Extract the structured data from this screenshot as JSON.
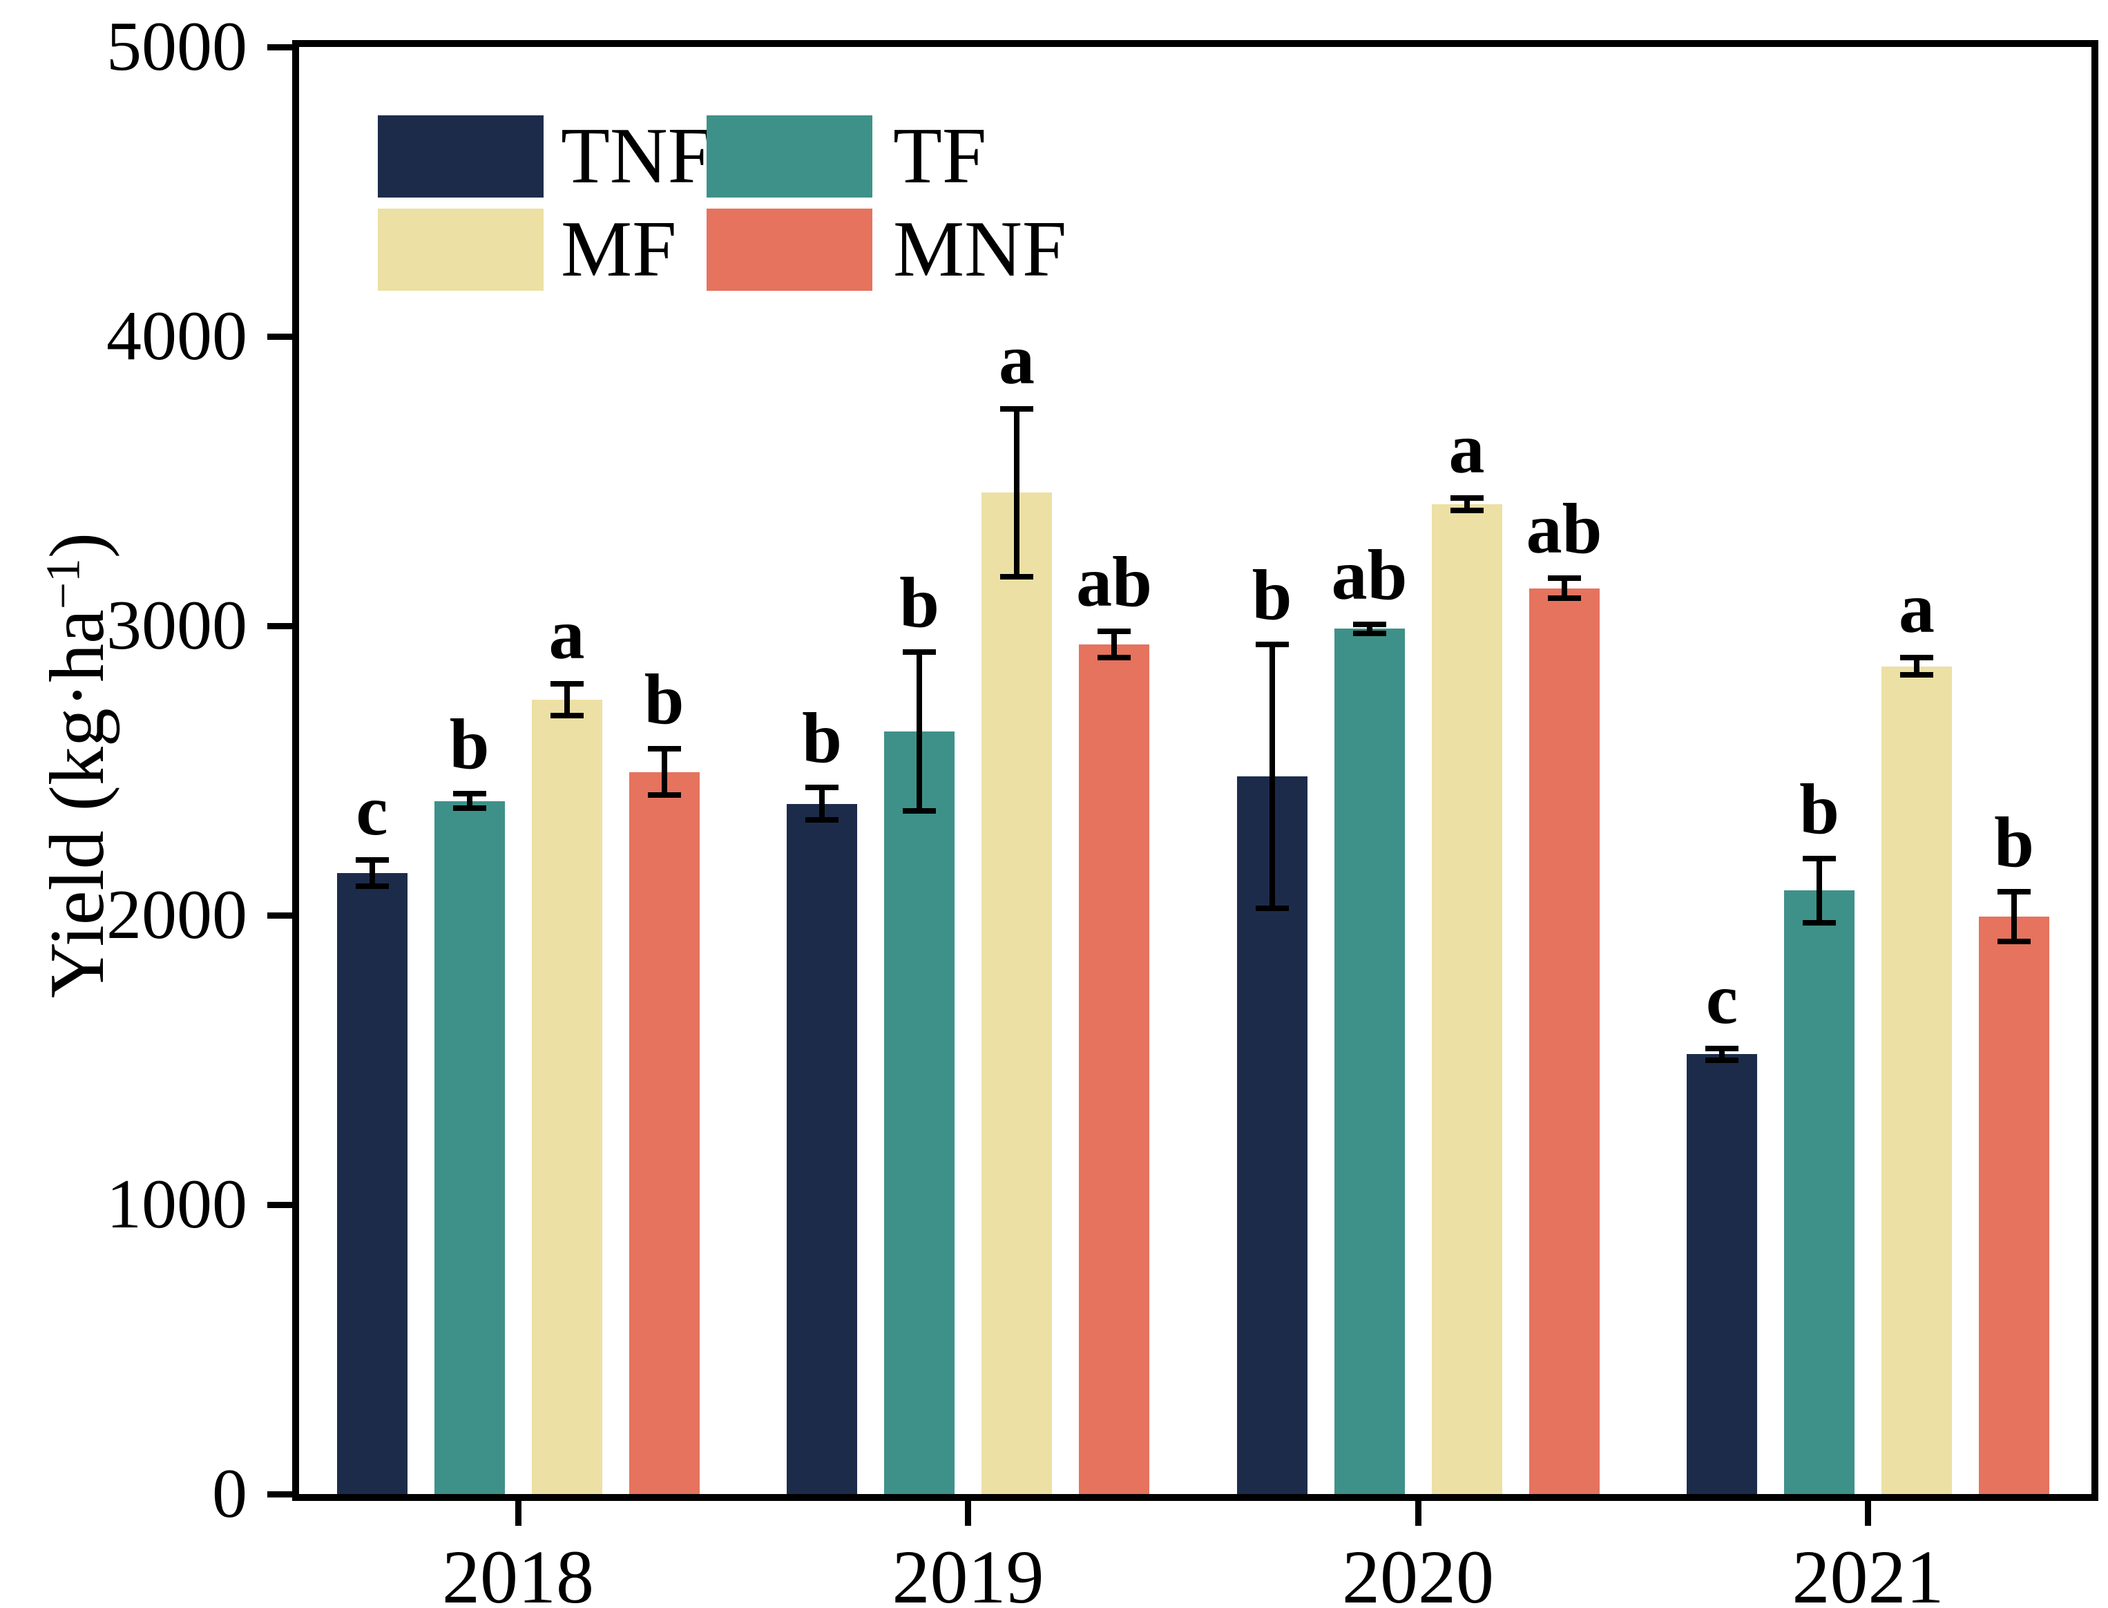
{
  "figure": {
    "background_color": "#ffffff",
    "axis_color": "#000000",
    "text_color": "#000000"
  },
  "y_axis": {
    "title_prefix": "Yield (kg·ha",
    "title_sup": "−1",
    "title_suffix": ")",
    "tick_labels": [
      "0",
      "1000",
      "2000",
      "3000",
      "4000",
      "5000"
    ],
    "tick_values": [
      0,
      1000,
      2000,
      3000,
      4000,
      5000
    ],
    "min": 0,
    "max": 5000
  },
  "x_axis": {
    "tick_labels": [
      "2018",
      "2019",
      "2020",
      "2021"
    ]
  },
  "legend": {
    "items": [
      {
        "label": "TNF",
        "color": "#1d2b4b"
      },
      {
        "label": "TF",
        "color": "#3e9189"
      },
      {
        "label": "MF",
        "color": "#ece0a4"
      },
      {
        "label": "MNF",
        "color": "#e5735e"
      }
    ]
  },
  "chart_data": {
    "type": "bar",
    "title": "",
    "categories": [
      "2018",
      "2019",
      "2020",
      "2021"
    ],
    "series": [
      {
        "name": "TNF",
        "color": "#1d2b4b",
        "values": [
          2145,
          2385,
          2480,
          1520
        ],
        "errors": [
          55,
          65,
          465,
          30
        ],
        "sig_letters": [
          "c",
          "b",
          "b",
          "c"
        ]
      },
      {
        "name": "TF",
        "color": "#3e9189",
        "values": [
          2395,
          2635,
          2990,
          2085
        ],
        "errors": [
          35,
          285,
          25,
          120
        ],
        "sig_letters": [
          "b",
          "b",
          "ab",
          "b"
        ]
      },
      {
        "name": "MF",
        "color": "#ece0a4",
        "values": [
          2745,
          3460,
          3420,
          2860
        ],
        "errors": [
          65,
          300,
          30,
          40
        ],
        "sig_letters": [
          "a",
          "a",
          "a",
          "a"
        ]
      },
      {
        "name": "MNF",
        "color": "#e5735e",
        "values": [
          2495,
          2935,
          3130,
          1995
        ],
        "errors": [
          90,
          55,
          45,
          95
        ],
        "sig_letters": [
          "b",
          "ab",
          "ab",
          "b"
        ]
      }
    ],
    "xlabel": "",
    "ylabel": "Yield (kg·ha⁻¹)",
    "ylim": [
      0,
      5000
    ],
    "grid": false,
    "error_bars": true,
    "legend_position": "upper-left-inside"
  }
}
